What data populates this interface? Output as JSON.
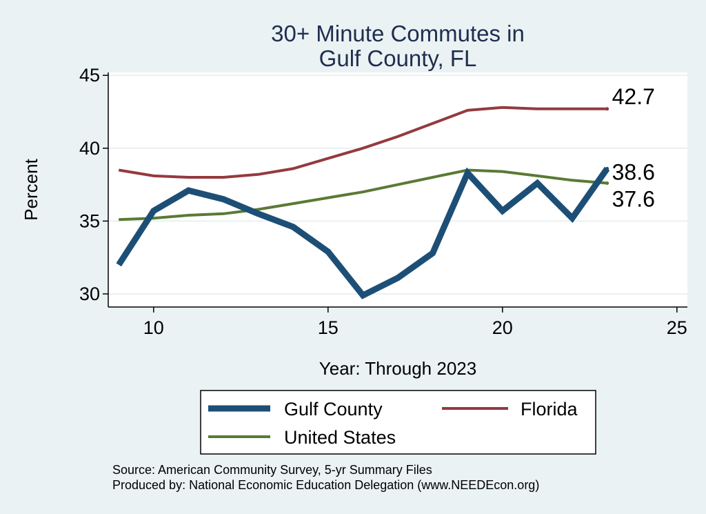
{
  "chart_data": {
    "type": "line",
    "title": [
      "30+ Minute Commutes in",
      "Gulf County, FL"
    ],
    "xlabel": "Year: Through 2023",
    "ylabel": "Percent",
    "xlim": [
      8.7,
      25.3
    ],
    "ylim": [
      29.1,
      45.2
    ],
    "xticks": [
      10,
      15,
      20,
      25
    ],
    "yticks": [
      30,
      35,
      40,
      45
    ],
    "grid": true,
    "legend_position": "bottom",
    "series": [
      {
        "name": "Florida",
        "color": "#943a3f",
        "end_label": "42.7",
        "x": [
          9,
          10,
          11,
          12,
          13,
          14,
          15,
          16,
          17,
          18,
          19,
          20,
          21,
          22,
          23
        ],
        "y": [
          38.5,
          38.1,
          38.0,
          38.0,
          38.2,
          38.6,
          39.3,
          40.0,
          40.8,
          41.7,
          42.6,
          42.8,
          42.7,
          42.7,
          42.7
        ]
      },
      {
        "name": "United States",
        "color": "#5a7a34",
        "end_label": "37.6",
        "x": [
          9,
          10,
          11,
          12,
          13,
          14,
          15,
          16,
          17,
          18,
          19,
          20,
          21,
          22,
          23
        ],
        "y": [
          35.1,
          35.2,
          35.4,
          35.5,
          35.8,
          36.2,
          36.6,
          37.0,
          37.5,
          38.0,
          38.5,
          38.4,
          38.1,
          37.8,
          37.6
        ]
      },
      {
        "name": "Gulf County",
        "color": "#1d4f76",
        "end_label": "38.6",
        "x": [
          9,
          10,
          11,
          12,
          13,
          14,
          15,
          16,
          17,
          18,
          19,
          20,
          21,
          22,
          23
        ],
        "y": [
          32.0,
          35.7,
          37.1,
          36.5,
          35.5,
          34.6,
          32.9,
          29.9,
          31.1,
          32.8,
          38.3,
          35.7,
          37.6,
          35.2,
          38.6
        ]
      }
    ],
    "legend": {
      "gulf_county": "Gulf County",
      "florida": "Florida",
      "united_states": "United States"
    }
  },
  "source": {
    "line1": "Source: American Community Survey, 5-yr Summary Files",
    "line2": "Produced by: National Economic Education Delegation (www.NEEDEcon.org)"
  }
}
